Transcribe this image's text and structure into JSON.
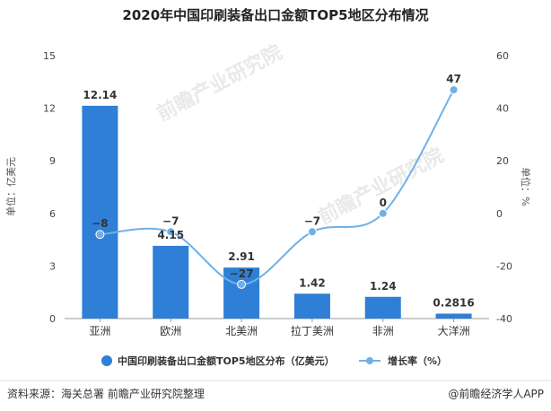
{
  "chart_data": {
    "type": "bar",
    "title": "2020年中国印刷装备出口金额TOP5地区分布情况",
    "categories": [
      "亚洲",
      "欧洲",
      "北美洲",
      "拉丁美洲",
      "非洲",
      "大洋洲"
    ],
    "ylabel_left": "单位：亿美元",
    "ylabel_right": "单位：%",
    "ylim_left": [
      0,
      15
    ],
    "yticks_left": [
      0,
      3,
      6,
      9,
      12,
      15
    ],
    "ylim_right": [
      -40,
      60
    ],
    "yticks_right": [
      -40,
      -20,
      0,
      20,
      40,
      60
    ],
    "grid": false,
    "legend_position": "bottom",
    "series": [
      {
        "name": "中国印刷装备出口金额TOP5地区分布（亿美元）",
        "type": "bar",
        "axis": "left",
        "color": "#2f7fd6",
        "values": [
          12.14,
          4.15,
          2.91,
          1.42,
          1.24,
          0.2816
        ],
        "labels": [
          "12.14",
          "4.15",
          "2.91",
          "1.42",
          "1.24",
          "0.2816"
        ]
      },
      {
        "name": "增长率（%）",
        "type": "line",
        "axis": "right",
        "color": "#6fb0e8",
        "values": [
          -8,
          -7,
          -27,
          -7,
          0,
          47
        ],
        "labels": [
          "−8",
          "−7",
          "−27",
          "−7",
          "0",
          "47"
        ]
      }
    ]
  },
  "footer": {
    "source": "资料来源：海关总署 前瞻产业研究院整理",
    "brand": "@前瞻经济学人APP"
  },
  "watermark": {
    "text": "前瞻产业研究院"
  }
}
